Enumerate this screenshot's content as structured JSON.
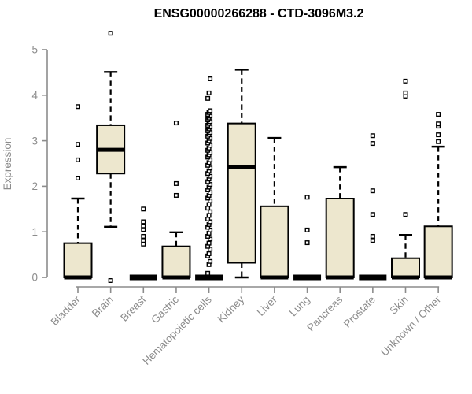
{
  "page": {
    "background": "#FFFFFF"
  },
  "chart_data": {
    "type": "boxplot",
    "title": "ENSG00000266288 - CTD-3096M3.2",
    "ylabel": "Expression",
    "xlabel": "",
    "ylim": [
      0,
      5
    ],
    "yticks": [
      0,
      1,
      2,
      3,
      4,
      5
    ],
    "grid": false,
    "legend": null,
    "categories": [
      "Bladder",
      "Brain",
      "Breast",
      "Gastric",
      "Hematopoietic cells",
      "Kidney",
      "Liver",
      "Lung",
      "Pancreas",
      "Prostate",
      "Skin",
      "Unknown / Other"
    ],
    "boxes": [
      {
        "category": "Bladder",
        "whisker_low": 0,
        "q1": 0,
        "median": 0,
        "q3": 0.75,
        "whisker_high": 1.73,
        "outliers": [
          2.18,
          2.58,
          2.92,
          3.75
        ]
      },
      {
        "category": "Brain",
        "whisker_low": 1.11,
        "q1": 2.28,
        "median": 2.8,
        "q3": 3.34,
        "whisker_high": 4.51,
        "outliers": [
          0,
          5.36
        ]
      },
      {
        "category": "Breast",
        "whisker_low": 0,
        "q1": 0,
        "median": 0,
        "q3": 0,
        "whisker_high": 0,
        "outliers": [
          0.73,
          0.81,
          0.9,
          1.05,
          1.13,
          1.22,
          1.5
        ]
      },
      {
        "category": "Gastric",
        "whisker_low": 0,
        "q1": 0,
        "median": 0,
        "q3": 0.68,
        "whisker_high": 0.99,
        "outliers": [
          1.8,
          2.06,
          3.39
        ]
      },
      {
        "category": "Hematopoietic cells",
        "whisker_low": 0,
        "q1": 0,
        "median": 0,
        "q3": 0,
        "whisker_high": 0,
        "outliers": [
          0.09,
          0.28,
          0.35,
          0.47,
          0.52,
          0.62,
          0.68,
          0.75,
          0.84,
          0.9,
          0.97,
          1.04,
          1.1,
          1.16,
          1.22,
          1.28,
          1.36,
          1.44,
          1.52,
          1.6,
          1.68,
          1.74,
          1.8,
          1.86,
          1.92,
          1.98,
          2.04,
          2.1,
          2.16,
          2.22,
          2.28,
          2.34,
          2.4,
          2.46,
          2.52,
          2.58,
          2.64,
          2.69,
          2.74,
          2.79,
          2.84,
          2.9,
          2.95,
          3.0,
          3.05,
          3.1,
          3.14,
          3.18,
          3.22,
          3.26,
          3.3,
          3.34,
          3.38,
          3.42,
          3.46,
          3.5,
          3.54,
          3.58,
          3.62,
          3.66,
          3.93,
          4.05,
          4.36
        ]
      },
      {
        "category": "Kidney",
        "whisker_low": 0,
        "q1": 0.32,
        "median": 2.43,
        "q3": 3.38,
        "whisker_high": 4.56,
        "outliers": []
      },
      {
        "category": "Liver",
        "whisker_low": 0,
        "q1": 0,
        "median": 0,
        "q3": 1.56,
        "whisker_high": 3.06,
        "outliers": []
      },
      {
        "category": "Lung",
        "whisker_low": 0,
        "q1": 0,
        "median": 0,
        "q3": 0,
        "whisker_high": 0,
        "outliers": [
          0.76,
          1.04,
          1.76
        ]
      },
      {
        "category": "Pancreas",
        "whisker_low": 0,
        "q1": 0,
        "median": 0,
        "q3": 1.73,
        "whisker_high": 2.42,
        "outliers": []
      },
      {
        "category": "Prostate",
        "whisker_low": 0,
        "q1": 0,
        "median": 0,
        "q3": 0,
        "whisker_high": 0,
        "outliers": [
          0.81,
          0.9,
          1.38,
          1.9,
          2.94,
          3.11
        ]
      },
      {
        "category": "Skin",
        "whisker_low": 0,
        "q1": 0,
        "median": 0,
        "q3": 0.42,
        "whisker_high": 0.93,
        "outliers": [
          1.38,
          3.98,
          4.05,
          4.31
        ]
      },
      {
        "category": "Unknown / Other",
        "whisker_low": 0,
        "q1": 0,
        "median": 0,
        "q3": 1.12,
        "whisker_high": 2.87,
        "outliers": [
          2.98,
          3.13,
          3.32,
          3.37,
          3.58
        ]
      }
    ],
    "colors": {
      "box_fill": "#EDE7CE",
      "box_border": "#000000",
      "median": "#000000",
      "whisker": "#000000",
      "outlier_stroke": "#000000",
      "outlier_fill": "#FFFFFF",
      "axis": "#8C8C8C",
      "tick_label": "#8C8C8C",
      "title": "#000000",
      "background": "#FFFFFF"
    }
  }
}
